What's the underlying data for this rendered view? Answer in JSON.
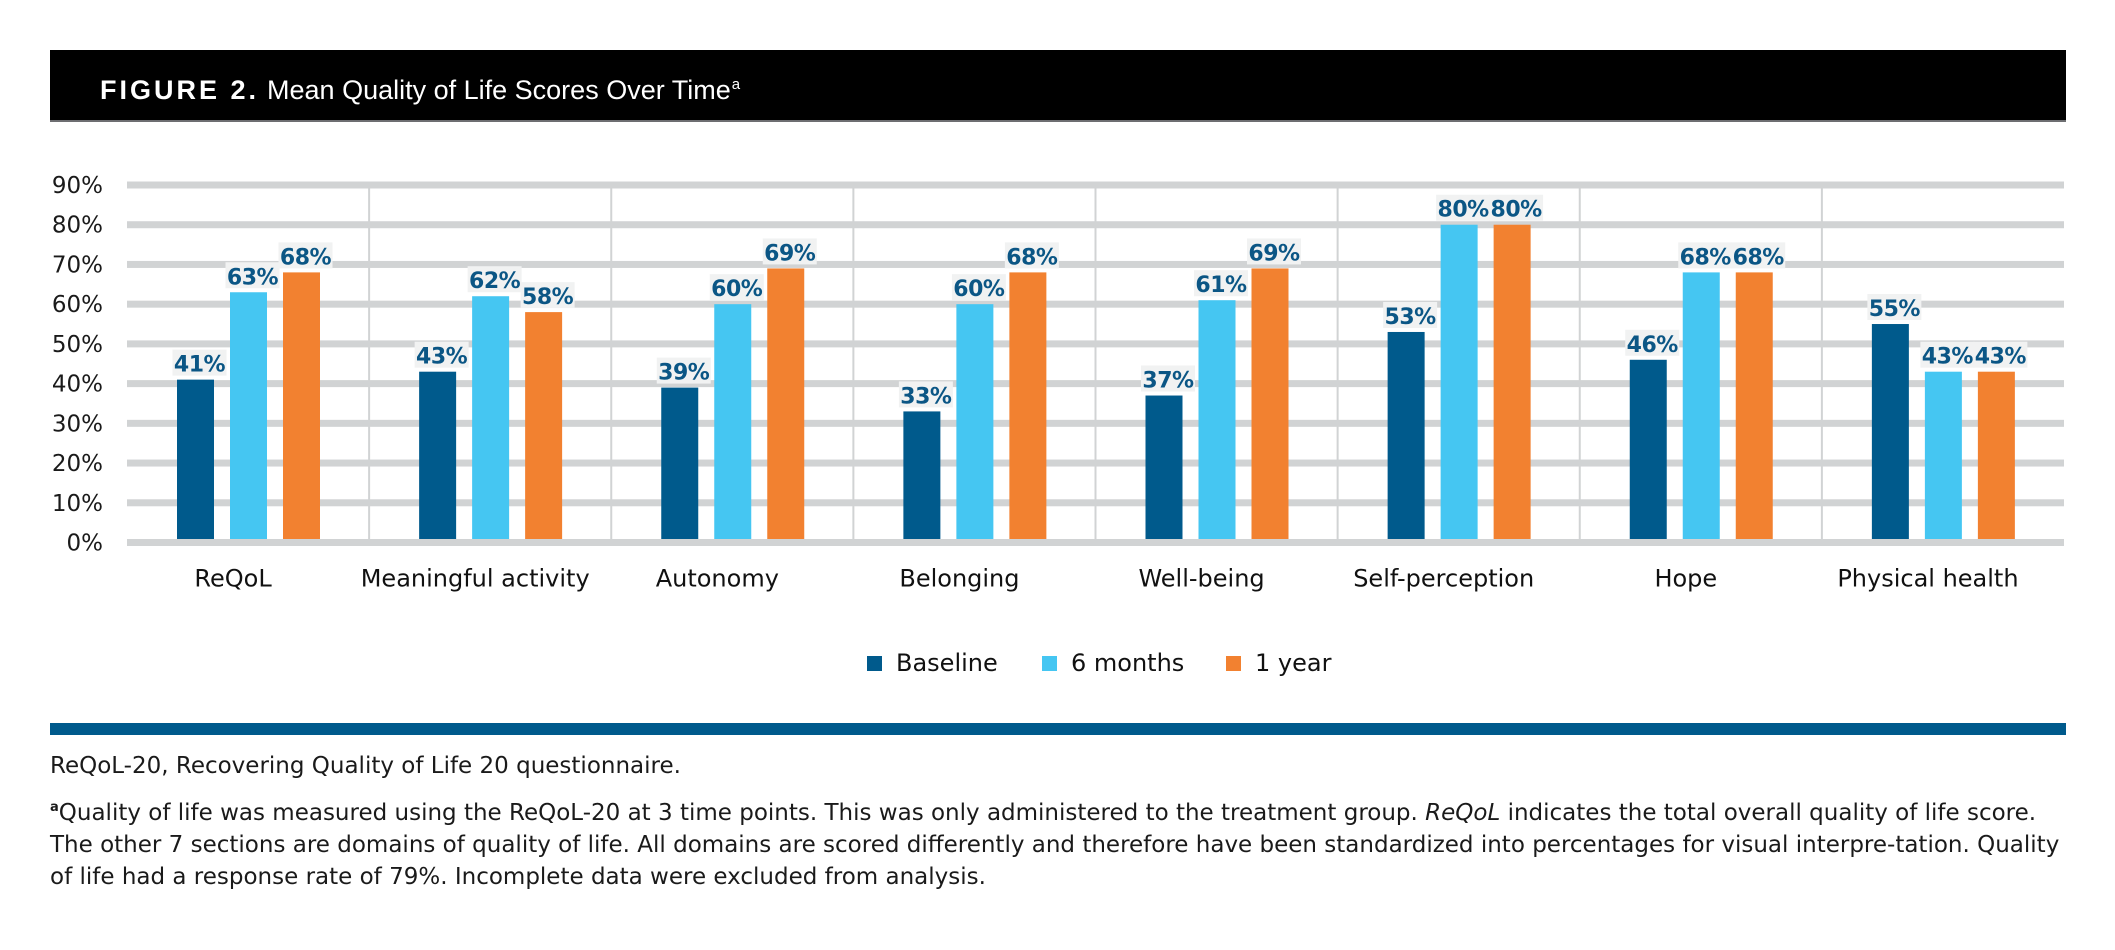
{
  "header": {
    "figure_label": "FIGURE 2.",
    "title": "Mean Quality of Life Scores Over Time",
    "superscript": "a"
  },
  "chart_data": {
    "type": "bar",
    "title": "Mean Quality of Life Scores Over Time",
    "xlabel": "",
    "ylabel": "",
    "ylim": [
      0,
      90
    ],
    "yticks": [
      0,
      10,
      20,
      30,
      40,
      50,
      60,
      70,
      80,
      90
    ],
    "ytick_labels": [
      "0%",
      "10%",
      "20%",
      "30%",
      "40%",
      "50%",
      "60%",
      "70%",
      "80%",
      "90%"
    ],
    "grid": true,
    "categories": [
      "ReQoL",
      "Meaningful activity",
      "Autonomy",
      "Belonging",
      "Well-being",
      "Self-perception",
      "Hope",
      "Physical health"
    ],
    "series": [
      {
        "name": "Baseline",
        "color": "#005a8c",
        "values": [
          41,
          43,
          39,
          33,
          37,
          53,
          46,
          55
        ],
        "labels": [
          "41%",
          "43%",
          "39%",
          "33%",
          "37%",
          "53%",
          "46%",
          "55%"
        ]
      },
      {
        "name": "6 months",
        "color": "#45c6f2",
        "values": [
          63,
          62,
          60,
          60,
          61,
          80,
          68,
          43
        ],
        "labels": [
          "63%",
          "62%",
          "60%",
          "60%",
          "61%",
          "80%",
          "68%",
          "43%"
        ]
      },
      {
        "name": "1 year",
        "color": "#f28130",
        "values": [
          68,
          58,
          69,
          68,
          69,
          80,
          68,
          43
        ],
        "labels": [
          "68%",
          "58%",
          "69%",
          "68%",
          "69%",
          "80%",
          "68%",
          "43%"
        ]
      }
    ],
    "legend_position": "bottom-center",
    "data_label_color": "#0b5685"
  },
  "legend": {
    "items": [
      {
        "label": "Baseline",
        "color": "#005a8c"
      },
      {
        "label": "6 months",
        "color": "#45c6f2"
      },
      {
        "label": "1 year",
        "color": "#f28130"
      }
    ]
  },
  "footnotes": {
    "abbreviation": "ReQoL-20, Recovering Quality of Life 20 questionnaire.",
    "note_marker": "a",
    "note_part1": "Quality of life was measured using the ReQoL-20 at 3 time points. This was only administered to the treatment group. ",
    "note_italic": "ReQoL",
    "note_part2": " indicates the total overall quality of life score. The other 7 sections are domains of quality of life. All domains are scored differently and therefore have been standardized into percentages for visual interpre-tation. Quality of life had a response rate of 79%. Incomplete data were excluded from analysis."
  },
  "colors": {
    "header_bg": "#000000",
    "rule": "#005a8c",
    "gridline": "#d1d3d4"
  }
}
